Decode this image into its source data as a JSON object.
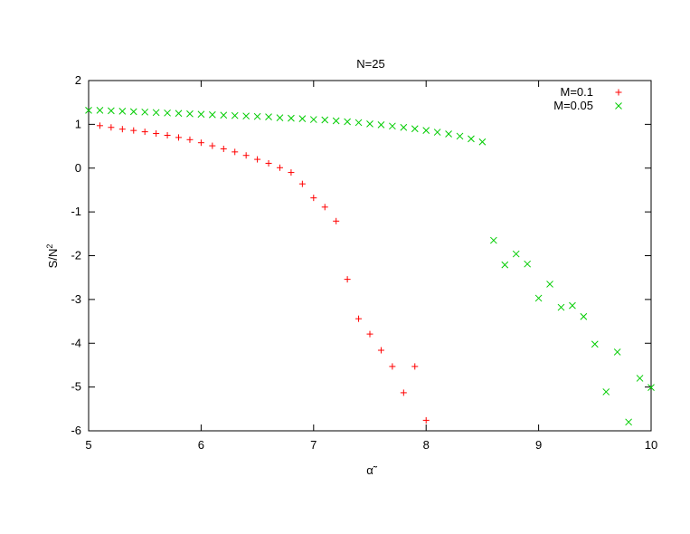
{
  "chart_data": {
    "type": "scatter",
    "title": "N=25",
    "xlabel": "α̃",
    "ylabel_base": "S/N",
    "ylabel_sup": "2",
    "xlim": [
      5,
      10
    ],
    "ylim": [
      -6,
      2
    ],
    "xticks": [
      5,
      6,
      7,
      8,
      9,
      10
    ],
    "yticks": [
      -6,
      -5,
      -4,
      -3,
      -2,
      -1,
      0,
      1,
      2
    ],
    "grid": false,
    "legend_position": "top-right",
    "series": [
      {
        "name": "M=0.1",
        "marker": "plus",
        "color": "#ff0000",
        "points": [
          [
            5.1,
            0.97
          ],
          [
            5.2,
            0.93
          ],
          [
            5.3,
            0.89
          ],
          [
            5.4,
            0.86
          ],
          [
            5.5,
            0.83
          ],
          [
            5.6,
            0.79
          ],
          [
            5.7,
            0.75
          ],
          [
            5.8,
            0.7
          ],
          [
            5.9,
            0.65
          ],
          [
            6.0,
            0.58
          ],
          [
            6.1,
            0.51
          ],
          [
            6.2,
            0.44
          ],
          [
            6.3,
            0.37
          ],
          [
            6.4,
            0.29
          ],
          [
            6.5,
            0.2
          ],
          [
            6.6,
            0.11
          ],
          [
            6.7,
            0.01
          ],
          [
            6.8,
            -0.1
          ],
          [
            6.9,
            -0.36
          ],
          [
            7.0,
            -0.68
          ],
          [
            7.1,
            -0.89
          ],
          [
            7.2,
            -1.21
          ],
          [
            7.3,
            -2.54
          ],
          [
            7.4,
            -3.44
          ],
          [
            7.5,
            -3.79
          ],
          [
            7.6,
            -4.16
          ],
          [
            7.7,
            -4.53
          ],
          [
            7.8,
            -5.13
          ],
          [
            7.9,
            -4.53
          ],
          [
            8.0,
            -5.76
          ]
        ]
      },
      {
        "name": "M=0.05",
        "marker": "cross",
        "color": "#00cc00",
        "points": [
          [
            5.0,
            1.32
          ],
          [
            5.1,
            1.32
          ],
          [
            5.2,
            1.31
          ],
          [
            5.3,
            1.3
          ],
          [
            5.4,
            1.29
          ],
          [
            5.5,
            1.28
          ],
          [
            5.6,
            1.27
          ],
          [
            5.7,
            1.26
          ],
          [
            5.8,
            1.25
          ],
          [
            5.9,
            1.24
          ],
          [
            6.0,
            1.23
          ],
          [
            6.1,
            1.22
          ],
          [
            6.2,
            1.21
          ],
          [
            6.3,
            1.2
          ],
          [
            6.4,
            1.19
          ],
          [
            6.5,
            1.18
          ],
          [
            6.6,
            1.17
          ],
          [
            6.7,
            1.15
          ],
          [
            6.8,
            1.14
          ],
          [
            6.9,
            1.13
          ],
          [
            7.0,
            1.11
          ],
          [
            7.1,
            1.1
          ],
          [
            7.2,
            1.08
          ],
          [
            7.3,
            1.06
          ],
          [
            7.4,
            1.04
          ],
          [
            7.5,
            1.01
          ],
          [
            7.6,
            0.99
          ],
          [
            7.7,
            0.96
          ],
          [
            7.8,
            0.93
          ],
          [
            7.9,
            0.9
          ],
          [
            8.0,
            0.86
          ],
          [
            8.1,
            0.82
          ],
          [
            8.2,
            0.78
          ],
          [
            8.3,
            0.73
          ],
          [
            8.4,
            0.67
          ],
          [
            8.5,
            0.6
          ],
          [
            8.6,
            -1.65
          ],
          [
            8.7,
            -2.21
          ],
          [
            8.8,
            -1.96
          ],
          [
            8.9,
            -2.19
          ],
          [
            9.0,
            -2.97
          ],
          [
            9.1,
            -2.65
          ],
          [
            9.2,
            -3.18
          ],
          [
            9.3,
            -3.14
          ],
          [
            9.4,
            -3.39
          ],
          [
            9.5,
            -4.02
          ],
          [
            9.6,
            -5.11
          ],
          [
            9.7,
            -4.2
          ],
          [
            9.8,
            -5.8
          ],
          [
            9.9,
            -4.8
          ],
          [
            10.0,
            -5.01
          ]
        ]
      }
    ]
  }
}
